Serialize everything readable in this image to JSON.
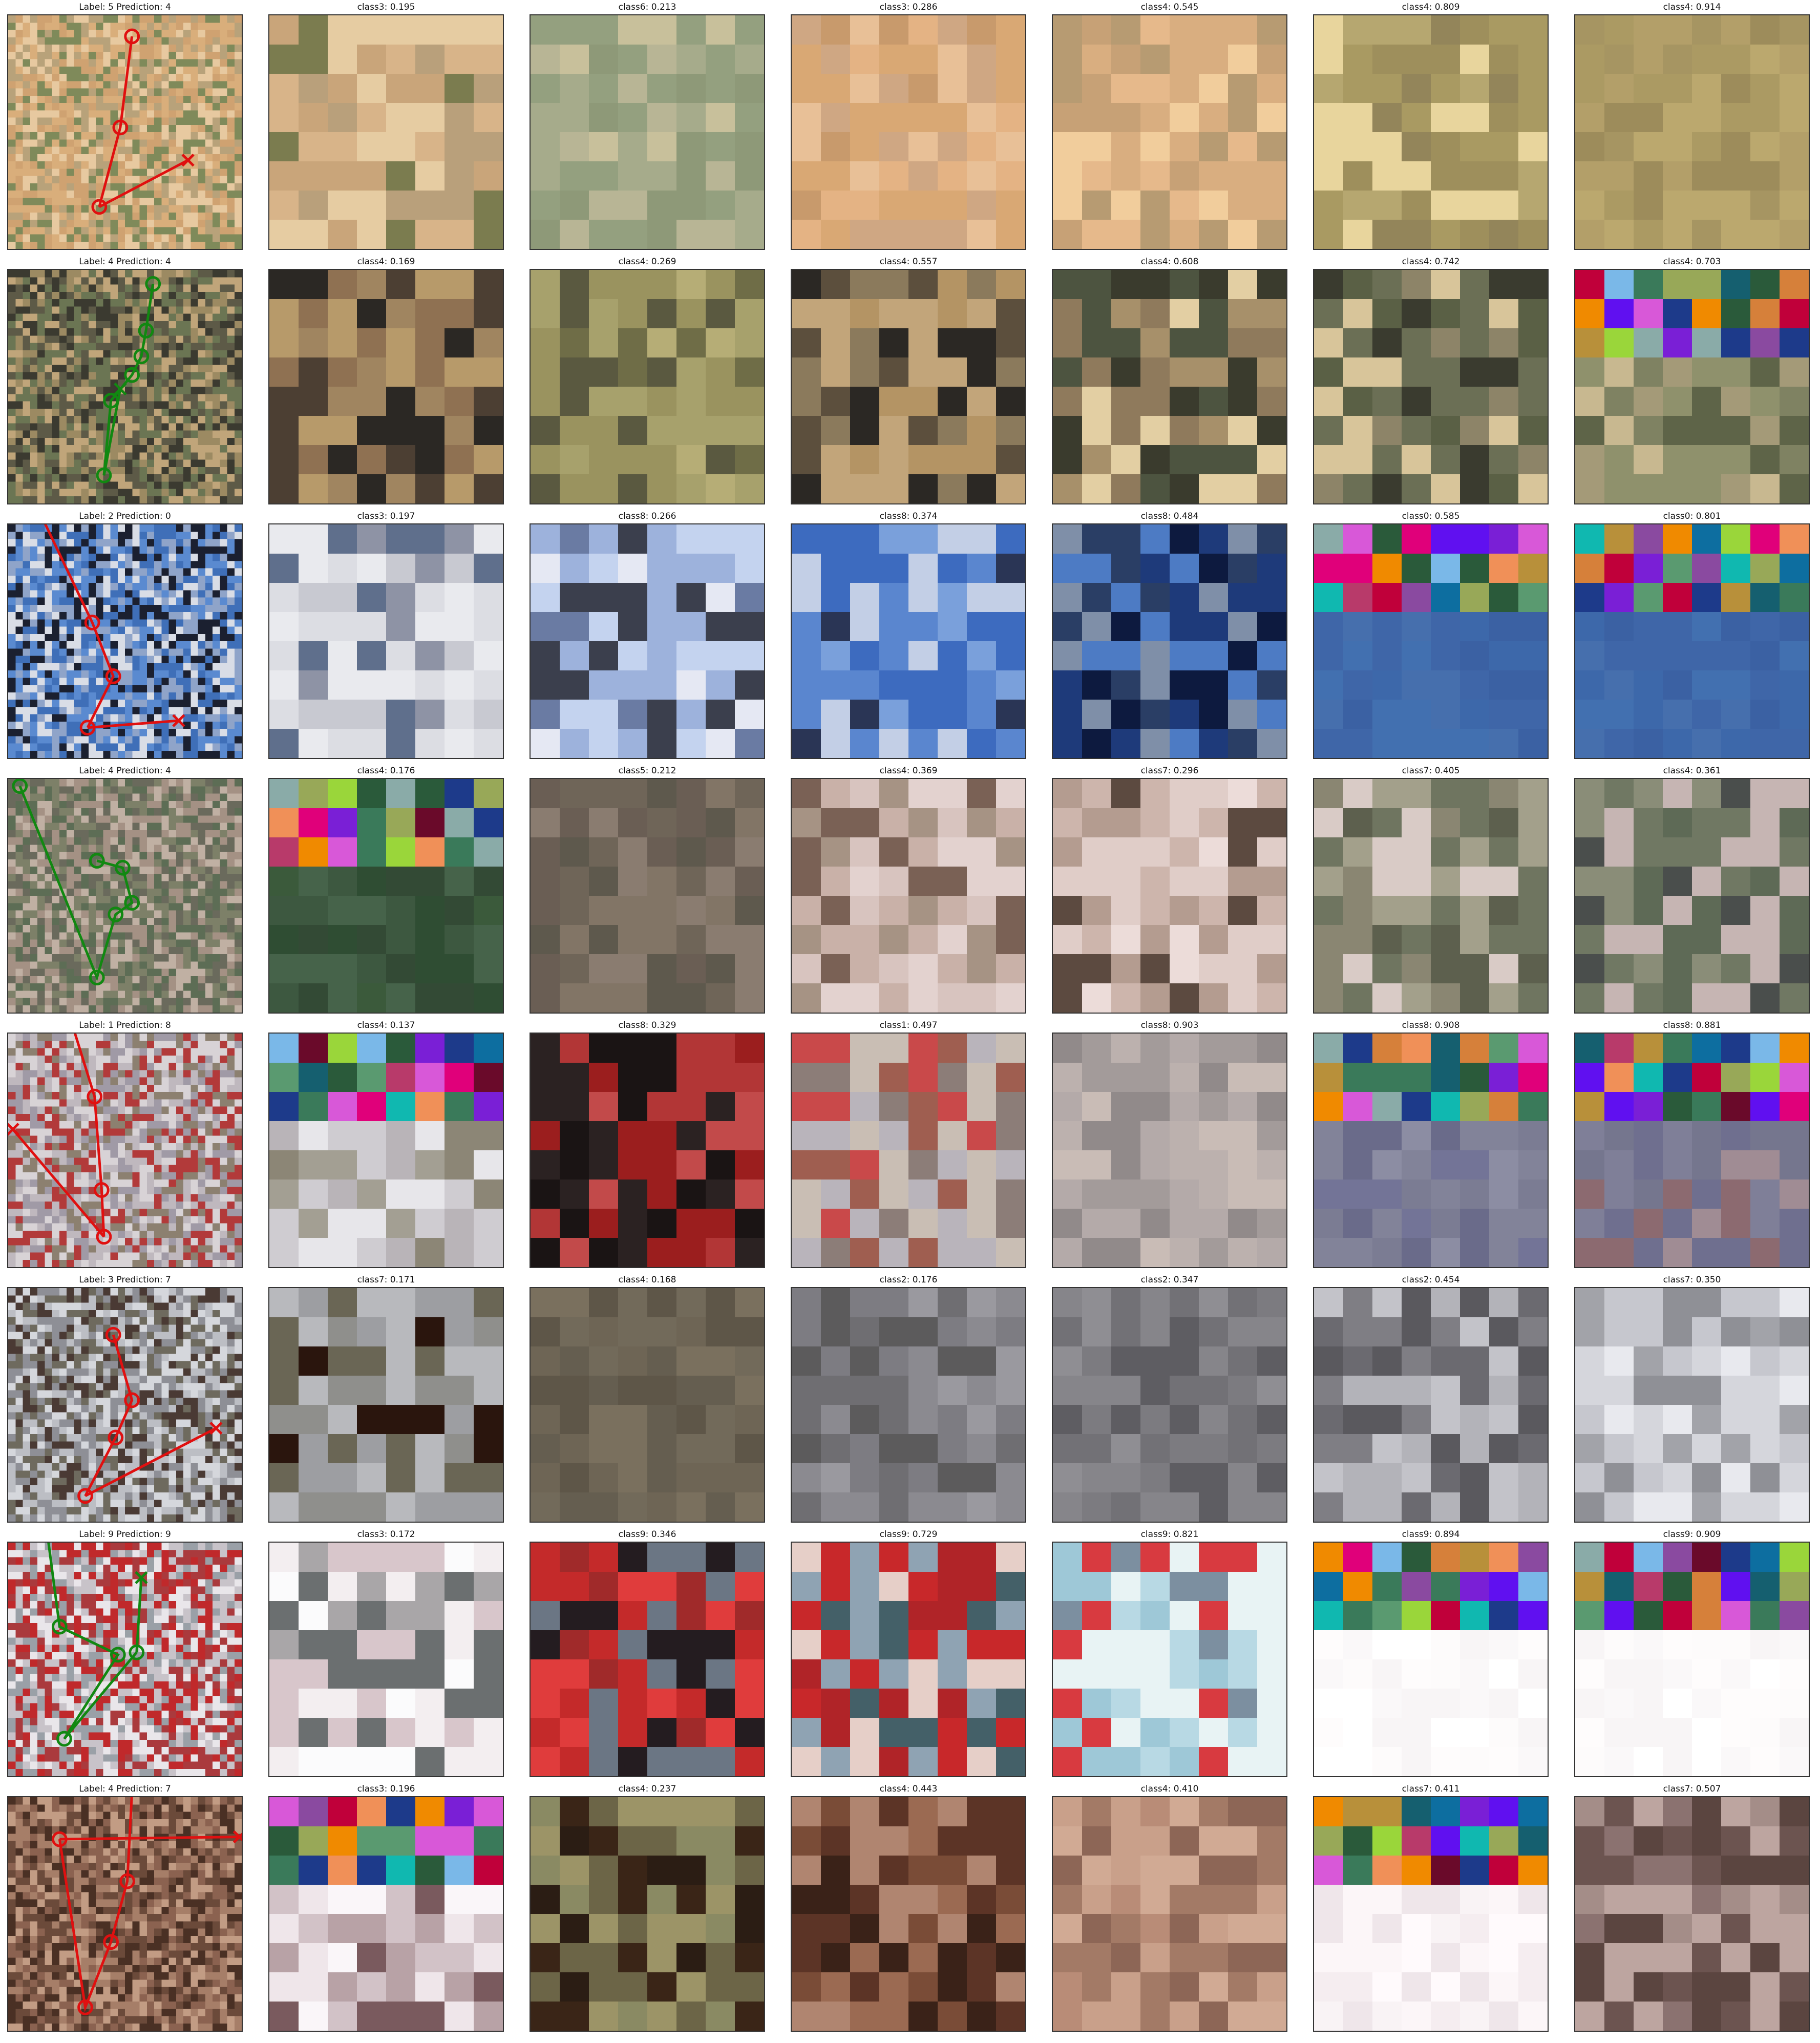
{
  "grid": {
    "rows": [
      {
        "title": "Label: 5 Prediction: 4",
        "correct": false,
        "palette": [
          "#b8a27a",
          "#d9ae7b",
          "#7f8a5a",
          "#cfa271",
          "#e7c9a0"
        ],
        "path": {
          "points": [
            [
              0.53,
              0.09
            ],
            [
              0.48,
              0.48
            ],
            [
              0.39,
              0.82
            ]
          ],
          "cross": [
            0.77,
            0.62
          ]
        },
        "crops": [
          {
            "title": "class3: 0.195",
            "palette": [
              "#d8b489",
              "#c9a57a",
              "#e6cca2",
              "#7b7c4f",
              "#b9a07b"
            ]
          },
          {
            "title": "class6: 0.213",
            "palette": [
              "#94a07f",
              "#a6ab8b",
              "#c8c09b",
              "#b8b595",
              "#8e9978"
            ]
          },
          {
            "title": "class3: 0.286",
            "palette": [
              "#e4b384",
              "#d9a874",
              "#c89a6c",
              "#e8c097",
              "#cfa783"
            ]
          },
          {
            "title": "class4: 0.545",
            "palette": [
              "#e6b98b",
              "#f1cd9c",
              "#c7a176",
              "#d9ae80",
              "#b79b72"
            ]
          },
          {
            "title": "class4: 0.809",
            "palette": [
              "#a99a62",
              "#9e8f5c",
              "#b6a770",
              "#e8d59d",
              "#93855a"
            ]
          },
          {
            "title": "class4: 0.914",
            "palette": [
              "#ab9a63",
              "#b39f69",
              "#9d8c5b",
              "#a69562",
              "#bba86e"
            ]
          }
        ]
      },
      {
        "title": "Label: 4 Prediction: 4",
        "correct": true,
        "palette": [
          "#3b3a30",
          "#5d5a47",
          "#9c8a62",
          "#c0a57a",
          "#6b7553"
        ],
        "path": {
          "points": [
            [
              0.62,
              0.06
            ],
            [
              0.59,
              0.26
            ],
            [
              0.57,
              0.37
            ],
            [
              0.53,
              0.45
            ],
            [
              0.44,
              0.56
            ],
            [
              0.41,
              0.88
            ]
          ],
          "cross": [
            0.48,
            0.51
          ]
        },
        "crops": [
          {
            "title": "class4: 0.169",
            "palette": [
              "#4c3f33",
              "#8f7152",
              "#b79a6a",
              "#2b2824",
              "#a08560"
            ]
          },
          {
            "title": "class4: 0.269",
            "palette": [
              "#6f6d47",
              "#9a935f",
              "#b6ad76",
              "#5a5940",
              "#a7a16c"
            ]
          },
          {
            "title": "class4: 0.557",
            "palette": [
              "#2b2824",
              "#8b7a5c",
              "#b49464",
              "#5c4f3d",
              "#c2a57a"
            ]
          },
          {
            "title": "class4: 0.608",
            "palette": [
              "#3a3b2d",
              "#8f7a5c",
              "#e3cfa3",
              "#4d5440",
              "#a7906a"
            ]
          },
          {
            "title": "class4: 0.742",
            "palette": [
              "#6b6f55",
              "#d8c59a",
              "#3a3b2f",
              "#8d8468",
              "#5a6045"
            ]
          },
          {
            "title": "class4: 0.703",
            "palette": [
              "#7f8262",
              "#a49a78",
              "#5e6448",
              "#c8b890",
              "#8f916c"
            ],
            "glitch": true
          }
        ]
      },
      {
        "title": "Label: 2 Prediction: 0",
        "correct": false,
        "palette": [
          "#3f6fb8",
          "#5a8ad0",
          "#d9dde6",
          "#1b2030",
          "#8fa4c9"
        ],
        "path": {
          "points": [
            [
              0.15,
              -0.02
            ],
            [
              0.36,
              0.42
            ],
            [
              0.45,
              0.65
            ],
            [
              0.34,
              0.87
            ]
          ],
          "cross": [
            0.73,
            0.84
          ]
        },
        "crops": [
          {
            "title": "class3: 0.197",
            "palette": [
              "#e9eaee",
              "#dcdde3",
              "#c8c9d1",
              "#8e93a5",
              "#5f6f8c"
            ]
          },
          {
            "title": "class8: 0.266",
            "palette": [
              "#c4d3ef",
              "#e5e8f3",
              "#3b3f4d",
              "#6a7ba3",
              "#9db2dc"
            ]
          },
          {
            "title": "class8: 0.374",
            "palette": [
              "#3d6bbf",
              "#5a86cf",
              "#2a3555",
              "#c3cfe6",
              "#7aa0db"
            ]
          },
          {
            "title": "class8: 0.484",
            "palette": [
              "#0d1a3f",
              "#1e3a7a",
              "#2a3e65",
              "#7f8fa8",
              "#4d7bc4"
            ]
          },
          {
            "title": "class0: 0.585",
            "palette": [
              "#3f66a8",
              "#4270b0",
              "#3b61a3",
              "#466fad",
              "#3d68aa"
            ],
            "glitch": true
          },
          {
            "title": "class0: 0.801",
            "palette": [
              "#3f66a8",
              "#4270b0",
              "#3b61a3",
              "#466fad",
              "#3d68aa"
            ],
            "glitch": true
          }
        ]
      },
      {
        "title": "Label: 4 Prediction: 4",
        "correct": true,
        "palette": [
          "#5d6d55",
          "#7d8068",
          "#a49184",
          "#6a6a5c",
          "#c0b0a3"
        ],
        "path": {
          "points": [
            [
              0.05,
              0.03
            ],
            [
              0.38,
              0.85
            ],
            [
              0.46,
              0.58
            ],
            [
              0.53,
              0.53
            ],
            [
              0.49,
              0.38
            ],
            [
              0.38,
              0.35
            ]
          ],
          "cross": null
        },
        "crops": [
          {
            "title": "class4: 0.176",
            "palette": [
              "#3b5a3b",
              "#2f4d33",
              "#46634a",
              "#334a35",
              "#3d5840"
            ],
            "glitch": true
          },
          {
            "title": "class5: 0.212",
            "palette": [
              "#6f6558",
              "#827566",
              "#6a5e54",
              "#8a7c70",
              "#5e594d"
            ]
          },
          {
            "title": "class4: 0.369",
            "palette": [
              "#d8c4bf",
              "#c9b1a8",
              "#7a6155",
              "#a69384",
              "#e3d2cf"
            ]
          },
          {
            "title": "class7: 0.296",
            "palette": [
              "#e0cdc8",
              "#cdb5ac",
              "#5c4a40",
              "#b49c90",
              "#ecdcd9"
            ]
          },
          {
            "title": "class7: 0.405",
            "palette": [
              "#6f7560",
              "#8a8672",
              "#d9cbc6",
              "#a3a08b",
              "#5d604e"
            ]
          },
          {
            "title": "class4: 0.361",
            "palette": [
              "#4a4e4c",
              "#5e6a56",
              "#8a8d78",
              "#c6b5b3",
              "#707863"
            ]
          }
        ]
      },
      {
        "title": "Label: 1 Prediction: 8",
        "correct": false,
        "palette": [
          "#bfb8be",
          "#a09aa6",
          "#b23a3a",
          "#8c8070",
          "#d8d3d6"
        ],
        "path": {
          "points": [
            [
              0.28,
              -0.02
            ],
            [
              0.37,
              0.27
            ],
            [
              0.4,
              0.67
            ],
            [
              0.41,
              0.87
            ]
          ],
          "cross": [
            0.02,
            0.41
          ]
        },
        "crops": [
          {
            "title": "class4: 0.137",
            "palette": [
              "#e7e6ea",
              "#cfccd1",
              "#8c8676",
              "#b9b4b8",
              "#a39f93"
            ],
            "glitch": true
          },
          {
            "title": "class8: 0.329",
            "palette": [
              "#9b1e1e",
              "#b23636",
              "#1a1414",
              "#c24a4a",
              "#2b2222"
            ]
          },
          {
            "title": "class1: 0.497",
            "palette": [
              "#b9b4bb",
              "#c9beb4",
              "#9f5e50",
              "#c9494a",
              "#8c7d78"
            ]
          },
          {
            "title": "class8: 0.903",
            "palette": [
              "#b4aaa9",
              "#a39b9a",
              "#c9bcb6",
              "#918a8a",
              "#bcb1ae"
            ]
          },
          {
            "title": "class8: 0.908",
            "palette": [
              "#737497",
              "#828399",
              "#6a6b8a",
              "#8c8da3",
              "#7b7c93"
            ],
            "glitch": true
          },
          {
            "title": "class8: 0.881",
            "palette": [
              "#6f6f8f",
              "#7f7f98",
              "#a08c94",
              "#8c6a70",
              "#75768e"
            ],
            "glitch": true
          }
        ]
      },
      {
        "title": "Label: 3 Prediction: 7",
        "correct": false,
        "palette": [
          "#bcbec4",
          "#8e8f96",
          "#4a3a34",
          "#6e6a5e",
          "#d5d7dc"
        ],
        "path": {
          "points": [
            [
              0.45,
              0.2
            ],
            [
              0.53,
              0.48
            ],
            [
              0.46,
              0.64
            ],
            [
              0.33,
              0.89
            ]
          ],
          "cross": [
            0.89,
            0.6
          ]
        },
        "crops": [
          {
            "title": "class7: 0.171",
            "palette": [
              "#b8b9bd",
              "#9d9ea2",
              "#2a150d",
              "#8f8f8c",
              "#6a6655"
            ]
          },
          {
            "title": "class4: 0.168",
            "palette": [
              "#6e6555",
              "#7a705e",
              "#655e50",
              "#5e5648",
              "#726a5a"
            ]
          },
          {
            "title": "class2: 0.176",
            "palette": [
              "#8b8a90",
              "#7d7c82",
              "#9a999f",
              "#5c5b5c",
              "#6f6e72"
            ]
          },
          {
            "title": "class2: 0.347",
            "palette": [
              "#727176",
              "#86858a",
              "#5e5d62",
              "#7c7b80",
              "#8f8e93"
            ]
          },
          {
            "title": "class2: 0.454",
            "palette": [
              "#5a595e",
              "#6b6a70",
              "#c3c3c9",
              "#7f7e84",
              "#b3b3b9"
            ]
          },
          {
            "title": "class7: 0.350",
            "palette": [
              "#c6c7ce",
              "#d5d6dc",
              "#a2a3a9",
              "#e8e9ee",
              "#8f9096"
            ]
          }
        ]
      },
      {
        "title": "Label: 9 Prediction: 9",
        "correct": true,
        "palette": [
          "#e9e6ea",
          "#c0292b",
          "#aa3a3d",
          "#c8c3c9",
          "#9aa0a7"
        ],
        "path": {
          "points": [
            [
              0.17,
              -0.02
            ],
            [
              0.22,
              0.36
            ],
            [
              0.47,
              0.48
            ],
            [
              0.24,
              0.84
            ],
            [
              0.55,
              0.47
            ]
          ],
          "cross": [
            0.57,
            0.15
          ]
        },
        "crops": [
          {
            "title": "class3: 0.172",
            "palette": [
              "#fbfbfc",
              "#f3eef0",
              "#d8c6cb",
              "#6b6f70",
              "#a9a6a8"
            ]
          },
          {
            "title": "class9: 0.346",
            "palette": [
              "#c42a2a",
              "#e03c3c",
              "#241c20",
              "#6b7684",
              "#a02a2a"
            ]
          },
          {
            "title": "class9: 0.729",
            "palette": [
              "#c8282a",
              "#b02428",
              "#8fa3b3",
              "#446068",
              "#e6cfc8"
            ]
          },
          {
            "title": "class9: 0.821",
            "palette": [
              "#9ec8d7",
              "#b8d9e4",
              "#e8f3f4",
              "#d83a40",
              "#7c8fa0"
            ]
          },
          {
            "title": "class9: 0.894",
            "palette": [
              "#ffffff",
              "#fdfbfb",
              "#faf8f9",
              "#fefcfc",
              "#f8f5f6"
            ],
            "glitch": true
          },
          {
            "title": "class9: 0.909",
            "palette": [
              "#ffffff",
              "#fdfbfb",
              "#faf8f9",
              "#fefcfc",
              "#f8f5f6"
            ],
            "glitch": true
          }
        ]
      },
      {
        "title": "Label: 4 Prediction: 7",
        "correct": false,
        "palette": [
          "#6b4a3a",
          "#8b6250",
          "#a67e68",
          "#4a3024",
          "#c29c84"
        ],
        "path": {
          "points": [
            [
              0.53,
              -0.02
            ],
            [
              0.51,
              0.36
            ],
            [
              0.44,
              0.62
            ],
            [
              0.33,
              0.9
            ],
            [
              0.22,
              0.18
            ]
          ],
          "cross": [
            0.99,
            0.17
          ]
        },
        "crops": [
          {
            "title": "class3: 0.196",
            "palette": [
              "#faf6f9",
              "#efe6ea",
              "#d2c2c7",
              "#7a5a5e",
              "#b8a2a6"
            ],
            "glitch": true
          },
          {
            "title": "class4: 0.237",
            "palette": [
              "#8a8a63",
              "#3a2517",
              "#6c6547",
              "#9c9467",
              "#2b1d14"
            ]
          },
          {
            "title": "class4: 0.443",
            "palette": [
              "#7a4c37",
              "#5c3426",
              "#9b6a52",
              "#3a2218",
              "#b08570"
            ]
          },
          {
            "title": "class4: 0.410",
            "palette": [
              "#b98c77",
              "#a37a66",
              "#c9a08a",
              "#8d6656",
              "#d1aa94"
            ]
          },
          {
            "title": "class7: 0.411",
            "palette": [
              "#fcf6f8",
              "#f5edf0",
              "#fffafc",
              "#efe6ea",
              "#f9f3f5"
            ],
            "glitch": true
          },
          {
            "title": "class7: 0.507",
            "palette": [
              "#8b7270",
              "#6c5450",
              "#a48d88",
              "#5b4540",
              "#bda5a0"
            ]
          }
        ]
      }
    ]
  }
}
